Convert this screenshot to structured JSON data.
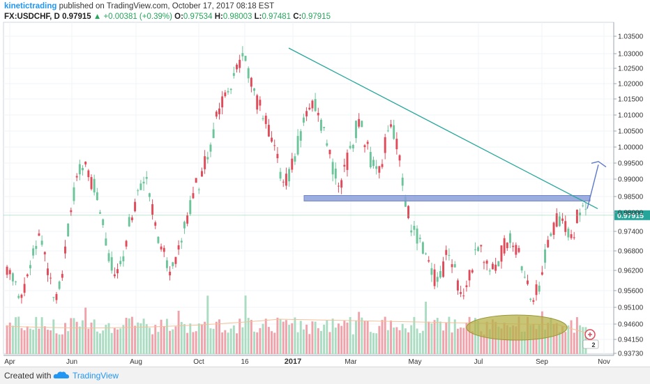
{
  "header": {
    "publisher": "kinetictrading",
    "published_text": "published on TradingView.com, October 17, 2017 08:18 EST",
    "symbol": "FX:USDCHF, D",
    "last": "0.97915",
    "change": "+0.00381 (+0.39%)",
    "open_label": "O:",
    "open": "0.97534",
    "high_label": "H:",
    "high": "0.98003",
    "low_label": "L:",
    "low": "0.97481",
    "close_label": "C:",
    "close": "0.97915"
  },
  "footer": {
    "created_with": "Created with",
    "brand": "TradingView"
  },
  "colors": {
    "up": "#6cc59a",
    "down": "#e04b5a",
    "trend": "#26a69a",
    "zone": "#8b9fd8",
    "ellipse": "#b5b14a",
    "axis_box": "#26a69a"
  },
  "chart_data": {
    "type": "candlestick",
    "symbol": "FX:USDCHF",
    "interval": "D",
    "x_tick_labels": [
      "Apr",
      "Jun",
      "Aug",
      "Oct",
      "16",
      "2017",
      "Mar",
      "May",
      "Jul",
      "Sep",
      "Nov"
    ],
    "y_tick_labels": [
      "1.03500",
      "1.03000",
      "1.02500",
      "1.02000",
      "1.01500",
      "1.01000",
      "1.00500",
      "1.00000",
      "0.99500",
      "0.99000",
      "0.98500",
      "0.98000",
      "0.97400",
      "0.96800",
      "0.96200",
      "0.95600",
      "0.95100",
      "0.94600",
      "0.94150",
      "0.93730"
    ],
    "ylim": [
      0.9373,
      1.035
    ],
    "last_price_label": "0.97915",
    "price_series": [
      [
        0.961,
        0.9646
      ],
      [
        0.9555,
        0.9647
      ],
      [
        0.9506,
        0.9555
      ],
      [
        0.958,
        0.9555
      ],
      [
        0.97,
        0.958
      ],
      [
        0.975,
        0.97
      ],
      [
        0.965,
        0.9745
      ],
      [
        0.956,
        0.965
      ],
      [
        0.952,
        0.956
      ],
      [
        0.966,
        0.952
      ],
      [
        0.98,
        0.966
      ],
      [
        0.99,
        0.98
      ],
      [
        0.992,
        0.99
      ],
      [
        0.993,
        0.994
      ],
      [
        0.988,
        0.993
      ],
      [
        0.98,
        0.988
      ],
      [
        0.97,
        0.98
      ],
      [
        0.96,
        0.97
      ],
      [
        0.958,
        0.96
      ],
      [
        0.97,
        0.958
      ],
      [
        0.978,
        0.97
      ],
      [
        0.985,
        0.978
      ],
      [
        0.992,
        0.985
      ],
      [
        0.988,
        0.992
      ],
      [
        0.978,
        0.988
      ],
      [
        0.97,
        0.978
      ],
      [
        0.964,
        0.97
      ],
      [
        0.96,
        0.964
      ],
      [
        0.97,
        0.96
      ],
      [
        0.976,
        0.97
      ],
      [
        0.982,
        0.976
      ],
      [
        0.99,
        0.982
      ],
      [
        0.992,
        0.991
      ],
      [
        0.998,
        0.992
      ],
      [
        1.005,
        0.998
      ],
      [
        1.015,
        1.005
      ],
      [
        1.02,
        1.015
      ],
      [
        1.018,
        1.02
      ],
      [
        1.03,
        1.018
      ],
      [
        1.028,
        1.03
      ],
      [
        1.02,
        1.028
      ],
      [
        1.015,
        1.02
      ],
      [
        1.01,
        1.015
      ],
      [
        1.005,
        1.01
      ],
      [
        0.998,
        1.005
      ],
      [
        0.992,
        0.998
      ],
      [
        0.988,
        0.992
      ],
      [
        0.995,
        0.988
      ],
      [
        1.003,
        0.995
      ],
      [
        1.012,
        1.003
      ],
      [
        1.014,
        1.012
      ],
      [
        1.01,
        1.014
      ],
      [
        1.005,
        1.01
      ],
      [
        0.997,
        1.005
      ],
      [
        0.991,
        0.997
      ],
      [
        0.988,
        0.991
      ],
      [
        0.996,
        0.988
      ],
      [
        1.004,
        0.996
      ],
      [
        1.009,
        1.004
      ],
      [
        1.002,
        1.009
      ],
      [
        0.995,
        1.002
      ],
      [
        0.99,
        0.995
      ],
      [
        0.998,
        0.99
      ],
      [
        1.008,
        0.998
      ],
      [
        1.005,
        1.008
      ],
      [
        0.99,
        1.005
      ],
      [
        0.978,
        0.99
      ],
      [
        0.974,
        0.978
      ],
      [
        0.97,
        0.974
      ],
      [
        0.968,
        0.97
      ],
      [
        0.962,
        0.968
      ],
      [
        0.958,
        0.962
      ],
      [
        0.964,
        0.958
      ],
      [
        0.97,
        0.964
      ],
      [
        0.96,
        0.97
      ],
      [
        0.953,
        0.96
      ],
      [
        0.96,
        0.953
      ],
      [
        0.966,
        0.96
      ],
      [
        0.97,
        0.966
      ],
      [
        0.966,
        0.97
      ],
      [
        0.96,
        0.966
      ],
      [
        0.965,
        0.96
      ],
      [
        0.97,
        0.965
      ],
      [
        0.974,
        0.97
      ],
      [
        0.968,
        0.974
      ],
      [
        0.962,
        0.968
      ],
      [
        0.956,
        0.962
      ],
      [
        0.95,
        0.956
      ],
      [
        0.96,
        0.95
      ],
      [
        0.97,
        0.96
      ],
      [
        0.976,
        0.97
      ],
      [
        0.98,
        0.976
      ],
      [
        0.976,
        0.98
      ],
      [
        0.972,
        0.976
      ],
      [
        0.978,
        0.972
      ],
      [
        0.982,
        0.978
      ],
      [
        0.979,
        0.982
      ]
    ],
    "volume": "relative bars along the bottom of the price pane",
    "annotations": [
      "descending green trendline",
      "blue horizontal resistance zone",
      "blue arrow pointing up",
      "olive ellipse on volume"
    ]
  }
}
